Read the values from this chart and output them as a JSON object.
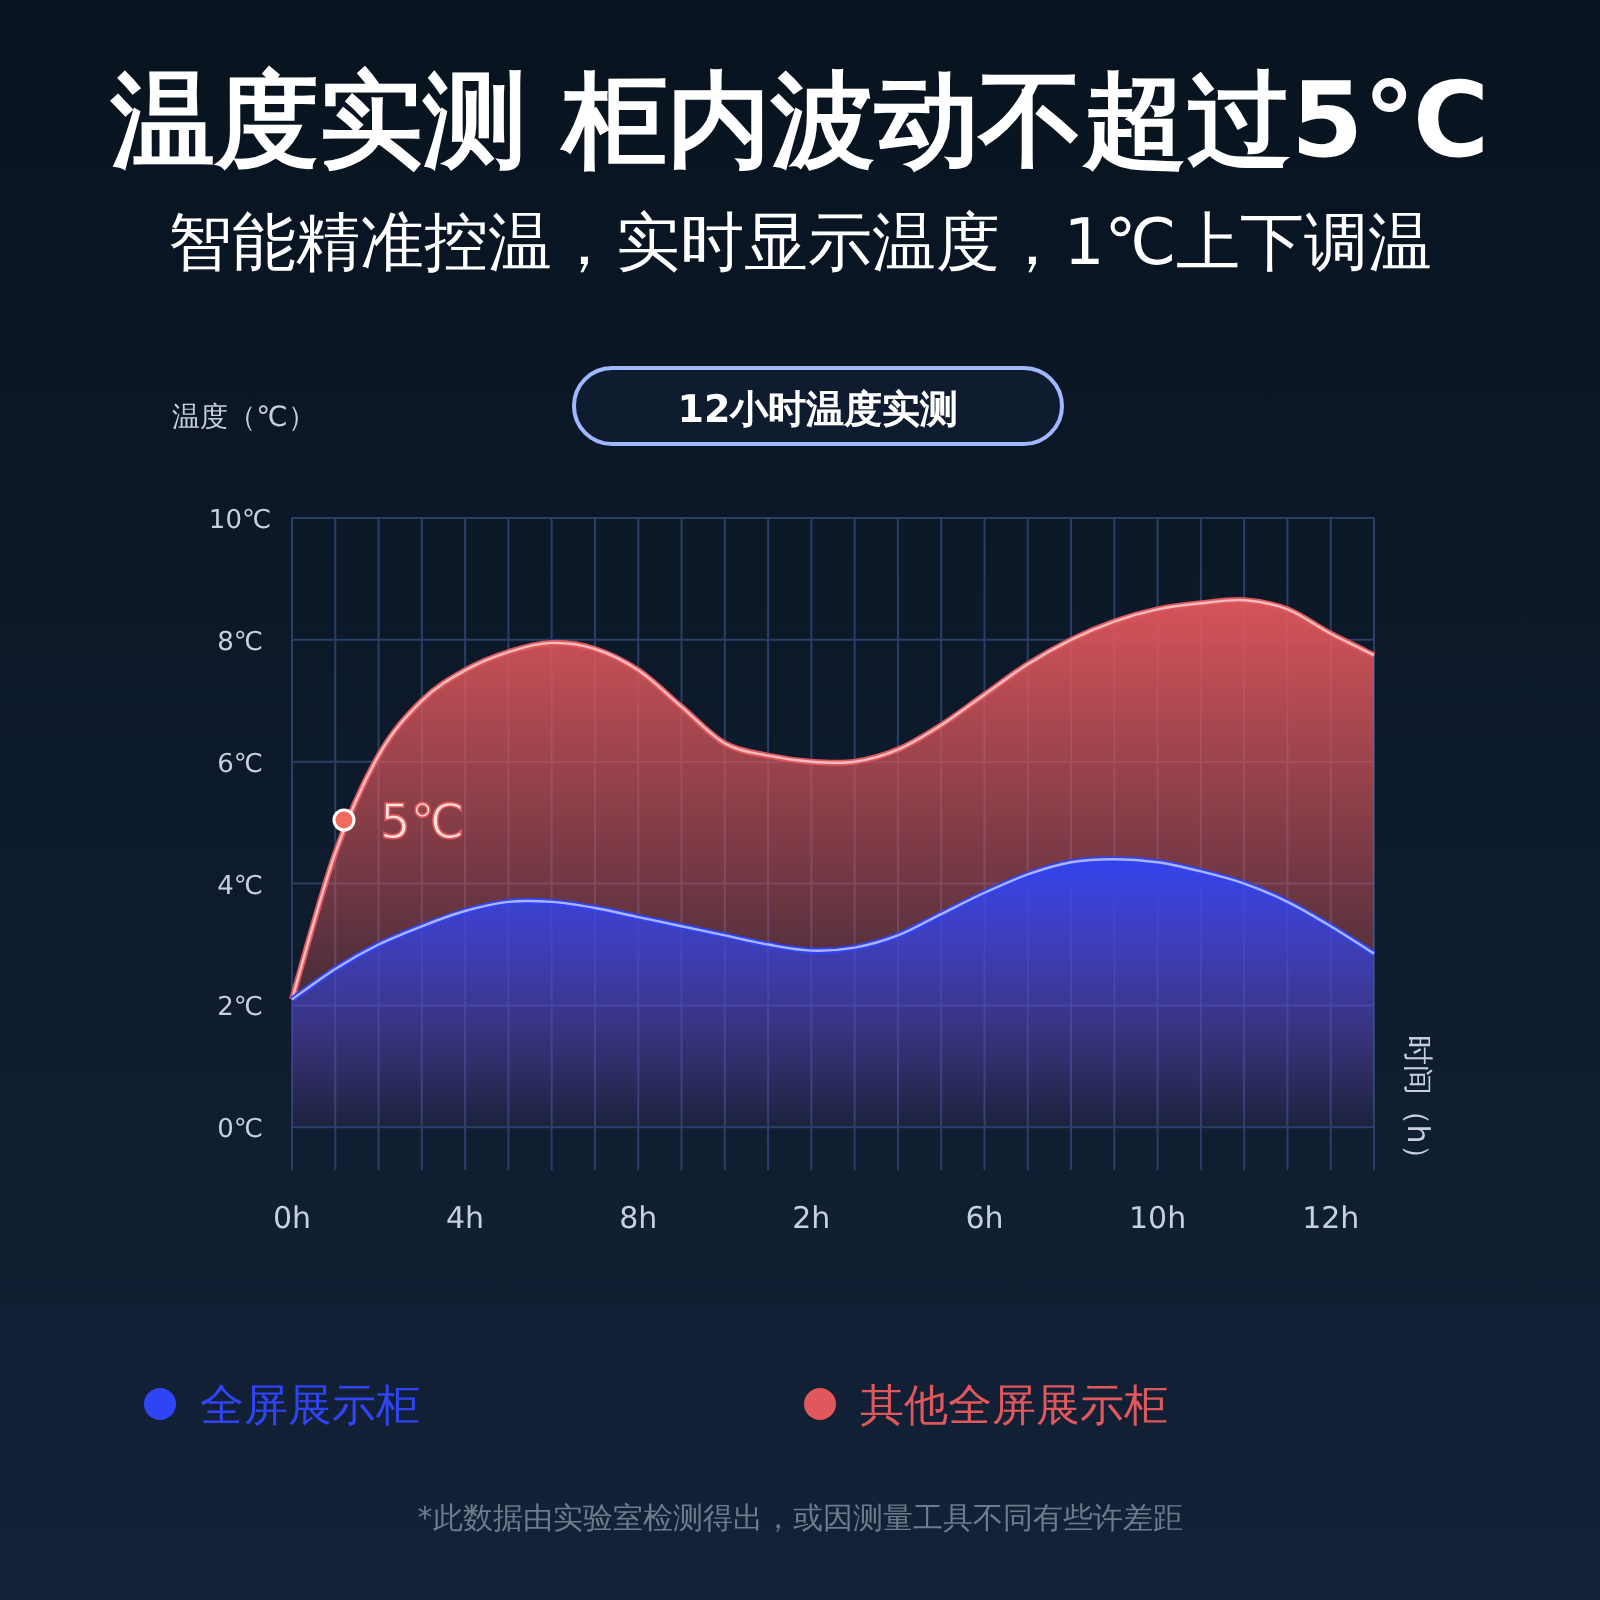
{
  "chart_data": {
    "type": "area",
    "title": "温度实测 柜内波动不超过5℃",
    "subtitle": "智能精准控温，实时显示温度，1℃上下调温",
    "ylabel": "温度（℃）",
    "annotations": [
      "12小时温度实测",
      "5℃",
      "时间（h）",
      "*此数据由实验室检测得出，或因测量工具不同有些许差距"
    ],
    "categories": [
      "0h",
      null,
      null,
      null,
      "4h",
      null,
      null,
      null,
      "8h",
      null,
      null,
      null,
      "2h",
      null,
      null,
      null,
      "6h",
      null,
      null,
      null,
      "10h",
      null,
      null,
      null,
      "12h",
      null
    ],
    "ylim": [
      -0.7,
      10
    ],
    "yticks": [
      {
        "value": 0,
        "label": "0℃"
      },
      {
        "value": 2,
        "label": "2℃"
      },
      {
        "value": 4,
        "label": "4℃"
      },
      {
        "value": 6,
        "label": "6℃"
      },
      {
        "value": 8,
        "label": "8℃"
      },
      {
        "value": 10,
        "label": "10℃"
      }
    ],
    "grid": true,
    "legend": "bottom",
    "series": [
      {
        "name": "全屏展示柜",
        "color": "#2f44f5",
        "values": [
          2.1,
          2.6,
          3.0,
          3.3,
          3.55,
          3.7,
          3.7,
          3.6,
          3.45,
          3.3,
          3.15,
          3.0,
          2.9,
          2.95,
          3.15,
          3.5,
          3.85,
          4.15,
          4.35,
          4.4,
          4.35,
          4.2,
          4.0,
          3.7,
          3.3,
          2.85
        ]
      },
      {
        "name": "其他全屏展示柜",
        "color": "#e0575c",
        "values": [
          2.1,
          4.5,
          6.1,
          7.0,
          7.5,
          7.8,
          7.95,
          7.85,
          7.5,
          6.9,
          6.3,
          6.1,
          6.0,
          6.0,
          6.2,
          6.6,
          7.1,
          7.6,
          8.0,
          8.3,
          8.5,
          8.6,
          8.65,
          8.5,
          8.1,
          7.75
        ]
      }
    ]
  }
}
